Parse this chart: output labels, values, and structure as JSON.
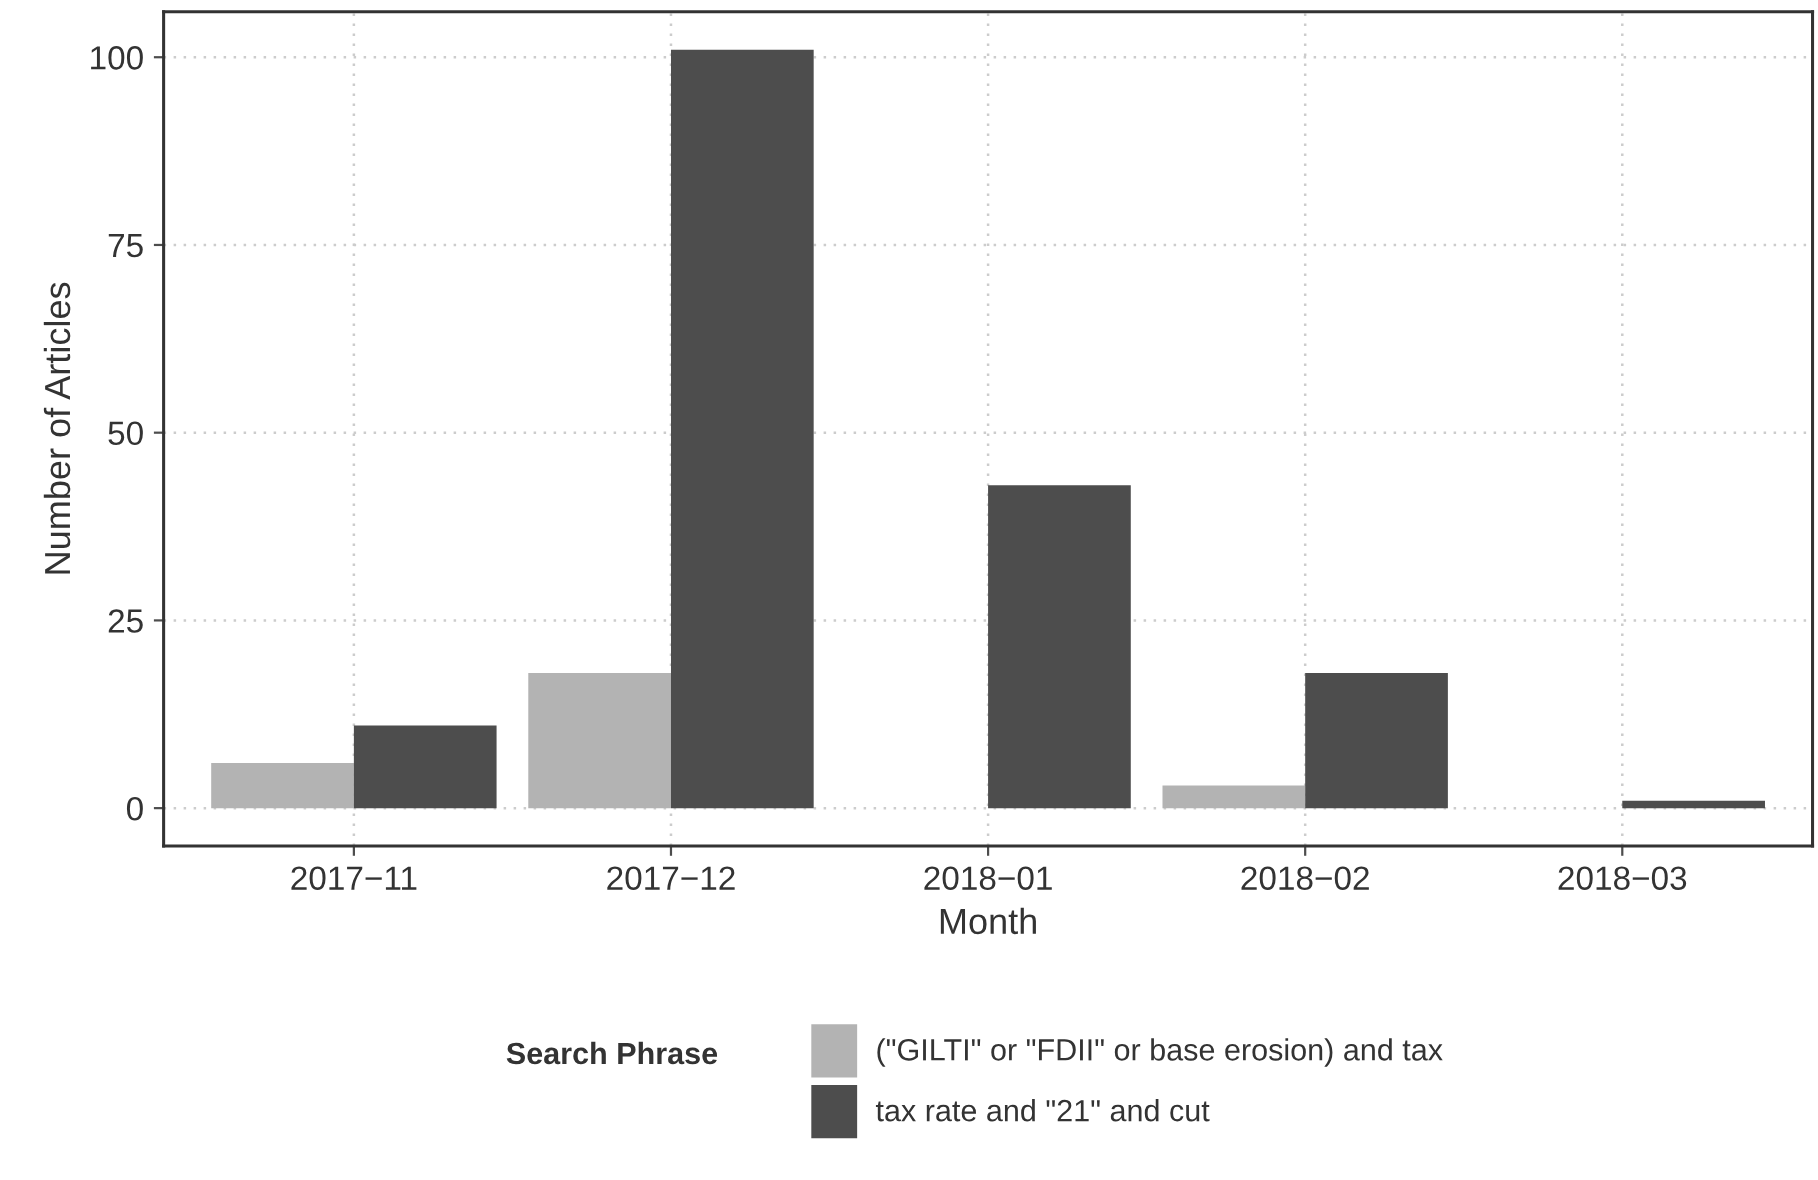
{
  "chart_data": {
    "type": "bar",
    "xlabel": "Month",
    "ylabel": "Number of Articles",
    "legend_title": "Search Phrase",
    "categories": [
      "2017−11",
      "2017−12",
      "2018−01",
      "2018−02",
      "2018−03"
    ],
    "series": [
      {
        "name": "(\"GILTI\" or \"FDII\" or base erosion) and tax",
        "color": "#b3b3b3",
        "values": [
          6,
          18,
          null,
          3,
          null
        ]
      },
      {
        "name": "tax rate and \"21\" and cut",
        "color": "#4d4d4d",
        "values": [
          11,
          101,
          43,
          18,
          1
        ]
      }
    ],
    "ylim": [
      -5.05,
      106.05
    ],
    "yticks": [
      0,
      25,
      50,
      75,
      100
    ],
    "grid": true,
    "legend": "bottom"
  }
}
